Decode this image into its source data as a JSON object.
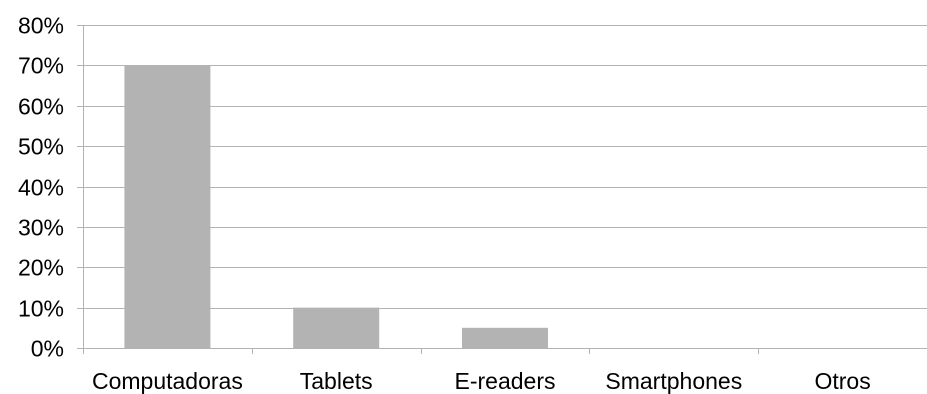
{
  "chart_data": {
    "type": "bar",
    "categories": [
      "Computadoras",
      "Tablets",
      "E-readers",
      "Smartphones",
      "Otros"
    ],
    "values": [
      70,
      10,
      5,
      0,
      0
    ],
    "ylim": [
      0,
      80
    ],
    "yticks": [
      0,
      10,
      20,
      30,
      40,
      50,
      60,
      70,
      80
    ],
    "ytick_labels": [
      "0%",
      "10%",
      "20%",
      "30%",
      "40%",
      "50%",
      "60%",
      "70%",
      "80%"
    ],
    "grid": true,
    "legend": "none",
    "colors": {
      "bar": "#b3b3b3",
      "grid": "#b3b3b3",
      "axis": "#b3b3b3"
    }
  }
}
